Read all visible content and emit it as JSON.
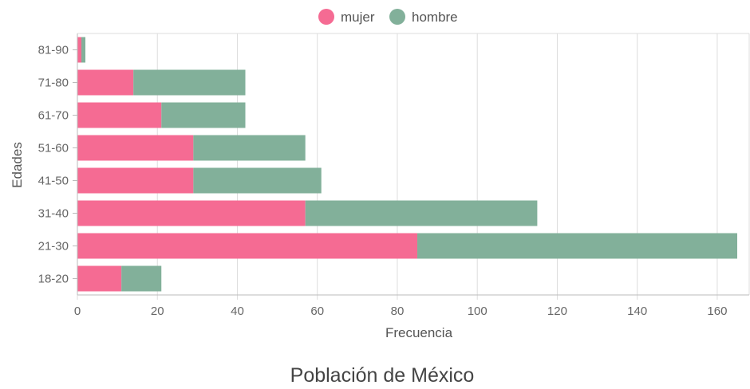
{
  "chart_data": {
    "type": "bar",
    "orientation": "horizontal",
    "stacked": true,
    "title": "Población de México",
    "xlabel": "Frecuencia",
    "ylabel": "Edades",
    "categories": [
      "81-90",
      "71-80",
      "61-70",
      "51-60",
      "41-50",
      "31-40",
      "21-30",
      "18-20"
    ],
    "series": [
      {
        "name": "mujer",
        "color": "#f56b93",
        "values": [
          1,
          14,
          21,
          29,
          29,
          57,
          85,
          11
        ]
      },
      {
        "name": "hombre",
        "color": "#82b09a",
        "values": [
          1,
          28,
          21,
          28,
          32,
          58,
          80,
          10
        ]
      }
    ],
    "xlim": [
      0,
      166
    ],
    "xticks": [
      0,
      20,
      40,
      60,
      80,
      100,
      120,
      140,
      160
    ],
    "grid": "vertical",
    "legend": "top"
  }
}
